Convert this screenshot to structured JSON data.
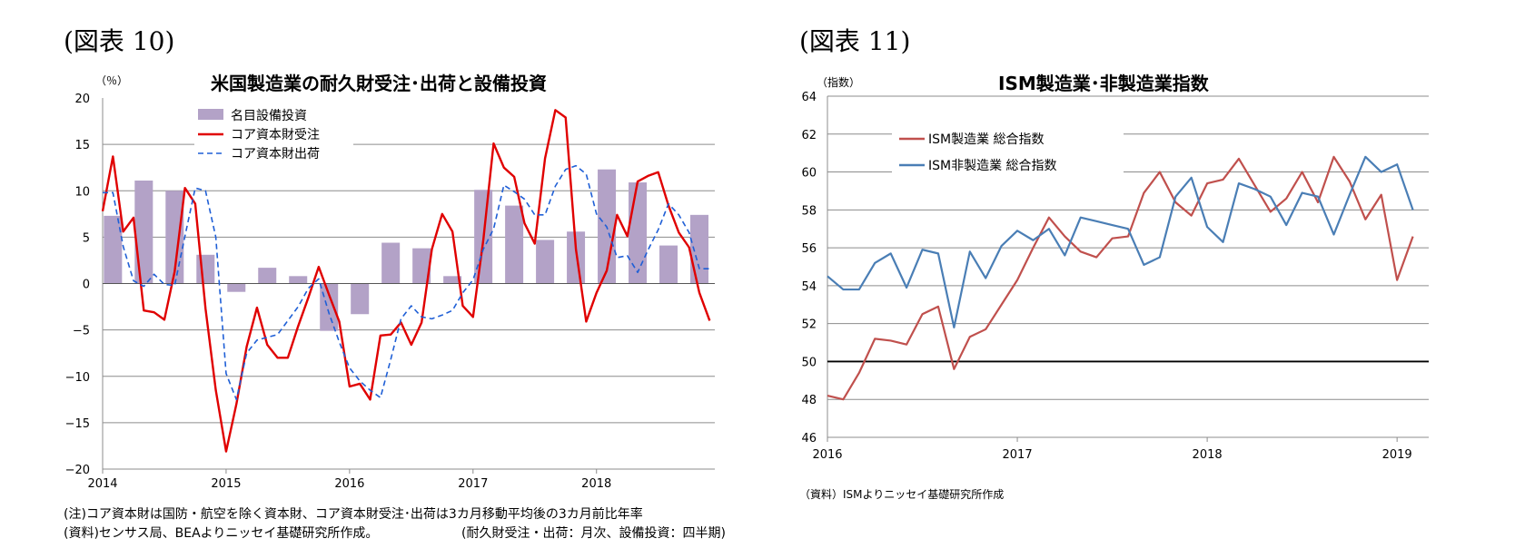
{
  "left": {
    "fig_label": "(図表 10)",
    "title": "米国製造業の耐久財受注･出荷と設備投資",
    "unit": "（％）",
    "notes": [
      "(注)コア資本財は国防・航空を除く資本財、コア資本財受注･出荷は3カ月移動平均後の3カ月前比年率",
      "(資料)センサス局、BEAよりニッセイ基礎研究所作成。",
      "(耐久財受注・出荷：月次、設備投資：四半期)"
    ]
  },
  "right": {
    "fig_label": "(図表 11)",
    "title": "ISM製造業･非製造業指数",
    "unit": "（指数）",
    "source": "（資料）ISMよりニッセイ基礎研究所作成"
  },
  "chart_data": [
    {
      "type": "bar+line",
      "title": "米国製造業の耐久財受注･出荷と設備投資",
      "ylabel": "（％）",
      "ylim": [
        -20,
        20
      ],
      "yticks": [
        20,
        15,
        10,
        5,
        0,
        -5,
        -10,
        -15,
        -20
      ],
      "x_tick_labels": [
        "2014",
        "2015",
        "2016",
        "2017",
        "2018"
      ],
      "x_range": [
        "2014-01",
        "2018-12"
      ],
      "grid": true,
      "legend_position": "top-left",
      "colors": {
        "bars": "#b3a2c7",
        "orders": "#e00000",
        "shipments": "#1f5fd6"
      },
      "bars": {
        "name": "名目設備投資",
        "quarters": [
          "2014Q1",
          "2014Q2",
          "2014Q3",
          "2014Q4",
          "2015Q1",
          "2015Q2",
          "2015Q3",
          "2015Q4",
          "2016Q1",
          "2016Q2",
          "2016Q3",
          "2016Q4",
          "2017Q1",
          "2017Q2",
          "2017Q3",
          "2017Q4",
          "2018Q1",
          "2018Q2",
          "2018Q3",
          "2018Q4"
        ],
        "values": [
          7.3,
          11.1,
          10.0,
          3.1,
          -0.9,
          1.7,
          0.8,
          -5.1,
          -3.3,
          4.4,
          3.8,
          0.8,
          10.1,
          8.4,
          4.7,
          5.6,
          12.3,
          10.9,
          4.1,
          7.4
        ]
      },
      "series": [
        {
          "name": "コア資本財受注",
          "style": "solid",
          "months": [
            "2014-01",
            "2014-02",
            "2014-03",
            "2014-04",
            "2014-05",
            "2014-06",
            "2014-07",
            "2014-08",
            "2014-09",
            "2014-10",
            "2014-11",
            "2014-12",
            "2015-01",
            "2015-02",
            "2015-03",
            "2015-04",
            "2015-05",
            "2015-06",
            "2015-07",
            "2015-08",
            "2015-09",
            "2015-10",
            "2015-11",
            "2015-12",
            "2016-01",
            "2016-02",
            "2016-03",
            "2016-04",
            "2016-05",
            "2016-06",
            "2016-07",
            "2016-08",
            "2016-09",
            "2016-10",
            "2016-11",
            "2016-12",
            "2017-01",
            "2017-02",
            "2017-03",
            "2017-04",
            "2017-05",
            "2017-06",
            "2017-07",
            "2017-08",
            "2017-09",
            "2017-10",
            "2017-11",
            "2017-12",
            "2018-01",
            "2018-02",
            "2018-03",
            "2018-04",
            "2018-05",
            "2018-06",
            "2018-07",
            "2018-08",
            "2018-09",
            "2018-10",
            "2018-11",
            "2018-12"
          ],
          "values": [
            7.8,
            13.7,
            5.6,
            7.1,
            -2.9,
            -3.1,
            -3.9,
            1.3,
            10.3,
            8.6,
            -2.7,
            -11.5,
            -18.1,
            -13.0,
            -6.8,
            -2.6,
            -6.6,
            -8.0,
            -8.0,
            -4.6,
            -1.5,
            1.8,
            -1.2,
            -4.1,
            -11.1,
            -10.8,
            -12.5,
            -5.6,
            -5.5,
            -4.2,
            -6.6,
            -4.2,
            3.7,
            7.5,
            5.6,
            -2.4,
            -3.6,
            4.7,
            15.1,
            12.5,
            11.5,
            6.5,
            4.3,
            13.5,
            18.7,
            17.9,
            3.7,
            -4.1,
            -1.0,
            1.4,
            7.4,
            5.1,
            11.0,
            11.6,
            12.0,
            8.4,
            5.5,
            3.9,
            -1.0,
            -4.0
          ]
        },
        {
          "name": "コア資本財出荷",
          "style": "dashed",
          "months": [
            "2014-01",
            "2014-02",
            "2014-03",
            "2014-04",
            "2014-05",
            "2014-06",
            "2014-07",
            "2014-08",
            "2014-09",
            "2014-10",
            "2014-11",
            "2014-12",
            "2015-01",
            "2015-02",
            "2015-03",
            "2015-04",
            "2015-05",
            "2015-06",
            "2015-07",
            "2015-08",
            "2015-09",
            "2015-10",
            "2015-11",
            "2015-12",
            "2016-01",
            "2016-02",
            "2016-03",
            "2016-04",
            "2016-05",
            "2016-06",
            "2016-07",
            "2016-08",
            "2016-09",
            "2016-10",
            "2016-11",
            "2016-12",
            "2017-01",
            "2017-02",
            "2017-03",
            "2017-04",
            "2017-05",
            "2017-06",
            "2017-07",
            "2017-08",
            "2017-09",
            "2017-10",
            "2017-11",
            "2017-12",
            "2018-01",
            "2018-02",
            "2018-03",
            "2018-04",
            "2018-05",
            "2018-06",
            "2018-07",
            "2018-08",
            "2018-09",
            "2018-10",
            "2018-11",
            "2018-12"
          ],
          "values": [
            9.8,
            9.8,
            4.0,
            0.3,
            -0.3,
            1.0,
            -0.1,
            -0.2,
            5.1,
            10.3,
            10.0,
            5.0,
            -9.7,
            -12.5,
            -7.5,
            -6.1,
            -5.8,
            -5.5,
            -4.0,
            -2.5,
            -0.5,
            0.5,
            -3.2,
            -6.3,
            -9.1,
            -10.5,
            -11.5,
            -12.3,
            -8.2,
            -3.8,
            -2.4,
            -3.6,
            -3.8,
            -3.4,
            -2.9,
            -1.0,
            0.4,
            3.7,
            5.9,
            10.6,
            9.9,
            9.1,
            7.4,
            7.4,
            10.5,
            12.3,
            12.7,
            11.8,
            7.5,
            6.1,
            2.8,
            3.0,
            1.2,
            3.6,
            5.8,
            8.6,
            7.4,
            5.5,
            1.6,
            1.6
          ]
        }
      ]
    },
    {
      "type": "line",
      "title": "ISM製造業･非製造業指数",
      "ylabel": "（指数）",
      "ylim": [
        46,
        64
      ],
      "yticks": [
        64,
        62,
        60,
        58,
        56,
        54,
        52,
        50,
        48,
        46
      ],
      "reference_line": 50,
      "x_tick_labels": [
        "2016",
        "2017",
        "2018",
        "2019"
      ],
      "x_range": [
        "2016-01",
        "2019-02"
      ],
      "grid": true,
      "legend_position": "top-left",
      "colors": {
        "manufacturing": "#c0504d",
        "non_manufacturing": "#4a7eb5"
      },
      "series": [
        {
          "name": "ISM製造業 総合指数",
          "months": [
            "2016-01",
            "2016-02",
            "2016-03",
            "2016-04",
            "2016-05",
            "2016-06",
            "2016-07",
            "2016-08",
            "2016-09",
            "2016-10",
            "2016-11",
            "2016-12",
            "2017-01",
            "2017-02",
            "2017-03",
            "2017-04",
            "2017-05",
            "2017-06",
            "2017-07",
            "2017-08",
            "2017-09",
            "2017-10",
            "2017-11",
            "2017-12",
            "2018-01",
            "2018-02",
            "2018-03",
            "2018-04",
            "2018-05",
            "2018-06",
            "2018-07",
            "2018-08",
            "2018-09",
            "2018-10",
            "2018-11",
            "2018-12",
            "2019-01",
            "2019-02"
          ],
          "values": [
            48.2,
            48.0,
            49.4,
            51.2,
            51.1,
            50.9,
            52.5,
            52.9,
            49.6,
            51.3,
            51.7,
            53.0,
            54.3,
            56.0,
            57.6,
            56.6,
            55.8,
            55.5,
            56.5,
            56.6,
            58.9,
            60.0,
            58.4,
            57.7,
            59.4,
            59.6,
            60.7,
            59.3,
            57.9,
            58.6,
            60.0,
            58.4,
            60.8,
            59.5,
            57.5,
            58.8,
            54.3,
            56.6
          ]
        },
        {
          "name": "ISM非製造業 総合指数",
          "months": [
            "2016-01",
            "2016-02",
            "2016-03",
            "2016-04",
            "2016-05",
            "2016-06",
            "2016-07",
            "2016-08",
            "2016-09",
            "2016-10",
            "2016-11",
            "2016-12",
            "2017-01",
            "2017-02",
            "2017-03",
            "2017-04",
            "2017-05",
            "2017-06",
            "2017-07",
            "2017-08",
            "2017-09",
            "2017-10",
            "2017-11",
            "2017-12",
            "2018-01",
            "2018-02",
            "2018-03",
            "2018-04",
            "2018-05",
            "2018-06",
            "2018-07",
            "2018-08",
            "2018-09",
            "2018-10",
            "2018-11",
            "2018-12",
            "2019-01",
            "2019-02"
          ],
          "values": [
            54.5,
            53.8,
            53.8,
            55.2,
            55.7,
            53.9,
            55.9,
            55.7,
            51.8,
            55.8,
            54.4,
            56.1,
            56.9,
            56.4,
            57.0,
            55.6,
            57.6,
            57.4,
            57.2,
            57.0,
            55.1,
            55.5,
            58.7,
            59.7,
            57.1,
            56.3,
            59.4,
            59.1,
            58.7,
            57.2,
            58.9,
            58.7,
            56.7,
            58.8,
            60.8,
            60.0,
            60.4,
            58.0
          ]
        }
      ]
    }
  ]
}
